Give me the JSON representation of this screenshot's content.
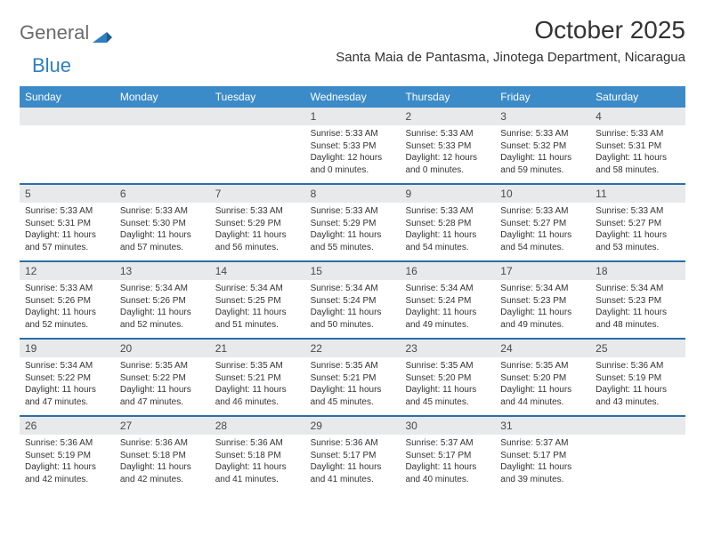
{
  "logo": {
    "text1": "General",
    "text2": "Blue"
  },
  "title": "October 2025",
  "location": "Santa Maia de Pantasma, Jinotega Department, Nicaragua",
  "colors": {
    "header_bg": "#3b8bc9",
    "header_text": "#ffffff",
    "daynum_bg": "#e8e9ea",
    "week_divider": "#2a6fa8",
    "body_text": "#333333"
  },
  "weekdays": [
    "Sunday",
    "Monday",
    "Tuesday",
    "Wednesday",
    "Thursday",
    "Friday",
    "Saturday"
  ],
  "weeks": [
    [
      {
        "n": "",
        "lines": [
          "",
          "",
          ""
        ]
      },
      {
        "n": "",
        "lines": [
          "",
          "",
          ""
        ]
      },
      {
        "n": "",
        "lines": [
          "",
          "",
          ""
        ]
      },
      {
        "n": "1",
        "lines": [
          "Sunrise: 5:33 AM",
          "Sunset: 5:33 PM",
          "Daylight: 12 hours and 0 minutes."
        ]
      },
      {
        "n": "2",
        "lines": [
          "Sunrise: 5:33 AM",
          "Sunset: 5:33 PM",
          "Daylight: 12 hours and 0 minutes."
        ]
      },
      {
        "n": "3",
        "lines": [
          "Sunrise: 5:33 AM",
          "Sunset: 5:32 PM",
          "Daylight: 11 hours and 59 minutes."
        ]
      },
      {
        "n": "4",
        "lines": [
          "Sunrise: 5:33 AM",
          "Sunset: 5:31 PM",
          "Daylight: 11 hours and 58 minutes."
        ]
      }
    ],
    [
      {
        "n": "5",
        "lines": [
          "Sunrise: 5:33 AM",
          "Sunset: 5:31 PM",
          "Daylight: 11 hours and 57 minutes."
        ]
      },
      {
        "n": "6",
        "lines": [
          "Sunrise: 5:33 AM",
          "Sunset: 5:30 PM",
          "Daylight: 11 hours and 57 minutes."
        ]
      },
      {
        "n": "7",
        "lines": [
          "Sunrise: 5:33 AM",
          "Sunset: 5:29 PM",
          "Daylight: 11 hours and 56 minutes."
        ]
      },
      {
        "n": "8",
        "lines": [
          "Sunrise: 5:33 AM",
          "Sunset: 5:29 PM",
          "Daylight: 11 hours and 55 minutes."
        ]
      },
      {
        "n": "9",
        "lines": [
          "Sunrise: 5:33 AM",
          "Sunset: 5:28 PM",
          "Daylight: 11 hours and 54 minutes."
        ]
      },
      {
        "n": "10",
        "lines": [
          "Sunrise: 5:33 AM",
          "Sunset: 5:27 PM",
          "Daylight: 11 hours and 54 minutes."
        ]
      },
      {
        "n": "11",
        "lines": [
          "Sunrise: 5:33 AM",
          "Sunset: 5:27 PM",
          "Daylight: 11 hours and 53 minutes."
        ]
      }
    ],
    [
      {
        "n": "12",
        "lines": [
          "Sunrise: 5:33 AM",
          "Sunset: 5:26 PM",
          "Daylight: 11 hours and 52 minutes."
        ]
      },
      {
        "n": "13",
        "lines": [
          "Sunrise: 5:34 AM",
          "Sunset: 5:26 PM",
          "Daylight: 11 hours and 52 minutes."
        ]
      },
      {
        "n": "14",
        "lines": [
          "Sunrise: 5:34 AM",
          "Sunset: 5:25 PM",
          "Daylight: 11 hours and 51 minutes."
        ]
      },
      {
        "n": "15",
        "lines": [
          "Sunrise: 5:34 AM",
          "Sunset: 5:24 PM",
          "Daylight: 11 hours and 50 minutes."
        ]
      },
      {
        "n": "16",
        "lines": [
          "Sunrise: 5:34 AM",
          "Sunset: 5:24 PM",
          "Daylight: 11 hours and 49 minutes."
        ]
      },
      {
        "n": "17",
        "lines": [
          "Sunrise: 5:34 AM",
          "Sunset: 5:23 PM",
          "Daylight: 11 hours and 49 minutes."
        ]
      },
      {
        "n": "18",
        "lines": [
          "Sunrise: 5:34 AM",
          "Sunset: 5:23 PM",
          "Daylight: 11 hours and 48 minutes."
        ]
      }
    ],
    [
      {
        "n": "19",
        "lines": [
          "Sunrise: 5:34 AM",
          "Sunset: 5:22 PM",
          "Daylight: 11 hours and 47 minutes."
        ]
      },
      {
        "n": "20",
        "lines": [
          "Sunrise: 5:35 AM",
          "Sunset: 5:22 PM",
          "Daylight: 11 hours and 47 minutes."
        ]
      },
      {
        "n": "21",
        "lines": [
          "Sunrise: 5:35 AM",
          "Sunset: 5:21 PM",
          "Daylight: 11 hours and 46 minutes."
        ]
      },
      {
        "n": "22",
        "lines": [
          "Sunrise: 5:35 AM",
          "Sunset: 5:21 PM",
          "Daylight: 11 hours and 45 minutes."
        ]
      },
      {
        "n": "23",
        "lines": [
          "Sunrise: 5:35 AM",
          "Sunset: 5:20 PM",
          "Daylight: 11 hours and 45 minutes."
        ]
      },
      {
        "n": "24",
        "lines": [
          "Sunrise: 5:35 AM",
          "Sunset: 5:20 PM",
          "Daylight: 11 hours and 44 minutes."
        ]
      },
      {
        "n": "25",
        "lines": [
          "Sunrise: 5:36 AM",
          "Sunset: 5:19 PM",
          "Daylight: 11 hours and 43 minutes."
        ]
      }
    ],
    [
      {
        "n": "26",
        "lines": [
          "Sunrise: 5:36 AM",
          "Sunset: 5:19 PM",
          "Daylight: 11 hours and 42 minutes."
        ]
      },
      {
        "n": "27",
        "lines": [
          "Sunrise: 5:36 AM",
          "Sunset: 5:18 PM",
          "Daylight: 11 hours and 42 minutes."
        ]
      },
      {
        "n": "28",
        "lines": [
          "Sunrise: 5:36 AM",
          "Sunset: 5:18 PM",
          "Daylight: 11 hours and 41 minutes."
        ]
      },
      {
        "n": "29",
        "lines": [
          "Sunrise: 5:36 AM",
          "Sunset: 5:17 PM",
          "Daylight: 11 hours and 41 minutes."
        ]
      },
      {
        "n": "30",
        "lines": [
          "Sunrise: 5:37 AM",
          "Sunset: 5:17 PM",
          "Daylight: 11 hours and 40 minutes."
        ]
      },
      {
        "n": "31",
        "lines": [
          "Sunrise: 5:37 AM",
          "Sunset: 5:17 PM",
          "Daylight: 11 hours and 39 minutes."
        ]
      },
      {
        "n": "",
        "lines": [
          "",
          "",
          ""
        ]
      }
    ]
  ]
}
